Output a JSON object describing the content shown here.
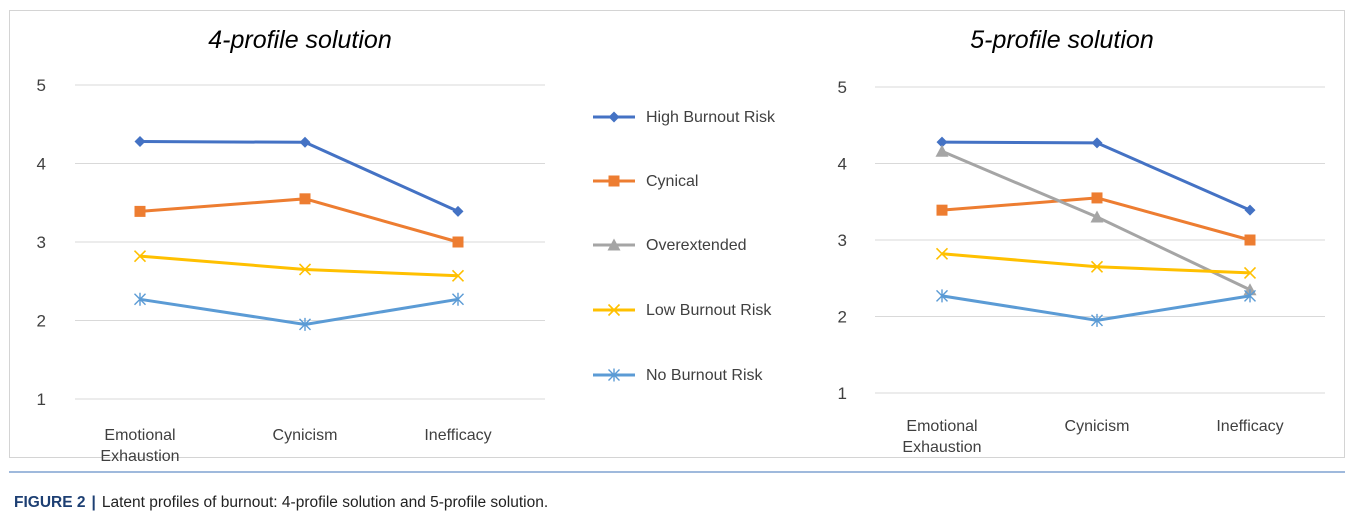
{
  "chart_data": [
    {
      "type": "line",
      "title": "4-profile solution",
      "categories": [
        [
          "Emotional",
          "Exhaustion"
        ],
        [
          "Cynicism"
        ],
        [
          "Inefficacy"
        ]
      ],
      "ylim": [
        1,
        5
      ],
      "yticks": [
        "1",
        "2",
        "3",
        "4",
        "5"
      ],
      "grid": true,
      "series": [
        {
          "name": "High Burnout Risk",
          "color": "#4472c4",
          "marker": "diamond",
          "values": [
            4.28,
            4.27,
            3.39
          ]
        },
        {
          "name": "Cynical",
          "color": "#ed7d31",
          "marker": "square",
          "values": [
            3.39,
            3.55,
            3.0
          ]
        },
        {
          "name": "Low Burnout Risk",
          "color": "#ffc000",
          "marker": "x",
          "values": [
            2.82,
            2.65,
            2.57
          ]
        },
        {
          "name": "No Burnout Risk",
          "color": "#5b9bd5",
          "marker": "star",
          "values": [
            2.27,
            1.95,
            2.27
          ]
        }
      ]
    },
    {
      "type": "line",
      "title": "5-profile solution",
      "categories": [
        [
          "Emotional",
          "Exhaustion"
        ],
        [
          "Cynicism"
        ],
        [
          "Inefficacy"
        ]
      ],
      "ylim": [
        1,
        5
      ],
      "yticks": [
        "1",
        "2",
        "3",
        "4",
        "5"
      ],
      "grid": true,
      "series": [
        {
          "name": "High Burnout Risk",
          "color": "#4472c4",
          "marker": "diamond",
          "values": [
            4.28,
            4.27,
            3.39
          ]
        },
        {
          "name": "Cynical",
          "color": "#ed7d31",
          "marker": "square",
          "values": [
            3.39,
            3.55,
            3.0
          ]
        },
        {
          "name": "Overextended",
          "color": "#a5a5a5",
          "marker": "triangle",
          "values": [
            4.16,
            3.3,
            2.35
          ]
        },
        {
          "name": "Low Burnout Risk",
          "color": "#ffc000",
          "marker": "x",
          "values": [
            2.82,
            2.65,
            2.57
          ]
        },
        {
          "name": "No Burnout Risk",
          "color": "#5b9bd5",
          "marker": "star",
          "values": [
            2.27,
            1.95,
            2.27
          ]
        }
      ]
    }
  ],
  "legend": [
    {
      "name": "High Burnout Risk",
      "color": "#4472c4",
      "marker": "diamond"
    },
    {
      "name": "Cynical",
      "color": "#ed7d31",
      "marker": "square"
    },
    {
      "name": "Overextended",
      "color": "#a5a5a5",
      "marker": "triangle"
    },
    {
      "name": "Low Burnout Risk",
      "color": "#ffc000",
      "marker": "x"
    },
    {
      "name": "No Burnout Risk",
      "color": "#5b9bd5",
      "marker": "star"
    }
  ],
  "caption": {
    "label": "FIGURE 2",
    "separator": "|",
    "text": "Latent profiles of burnout: 4-profile solution and 5-profile solution."
  }
}
